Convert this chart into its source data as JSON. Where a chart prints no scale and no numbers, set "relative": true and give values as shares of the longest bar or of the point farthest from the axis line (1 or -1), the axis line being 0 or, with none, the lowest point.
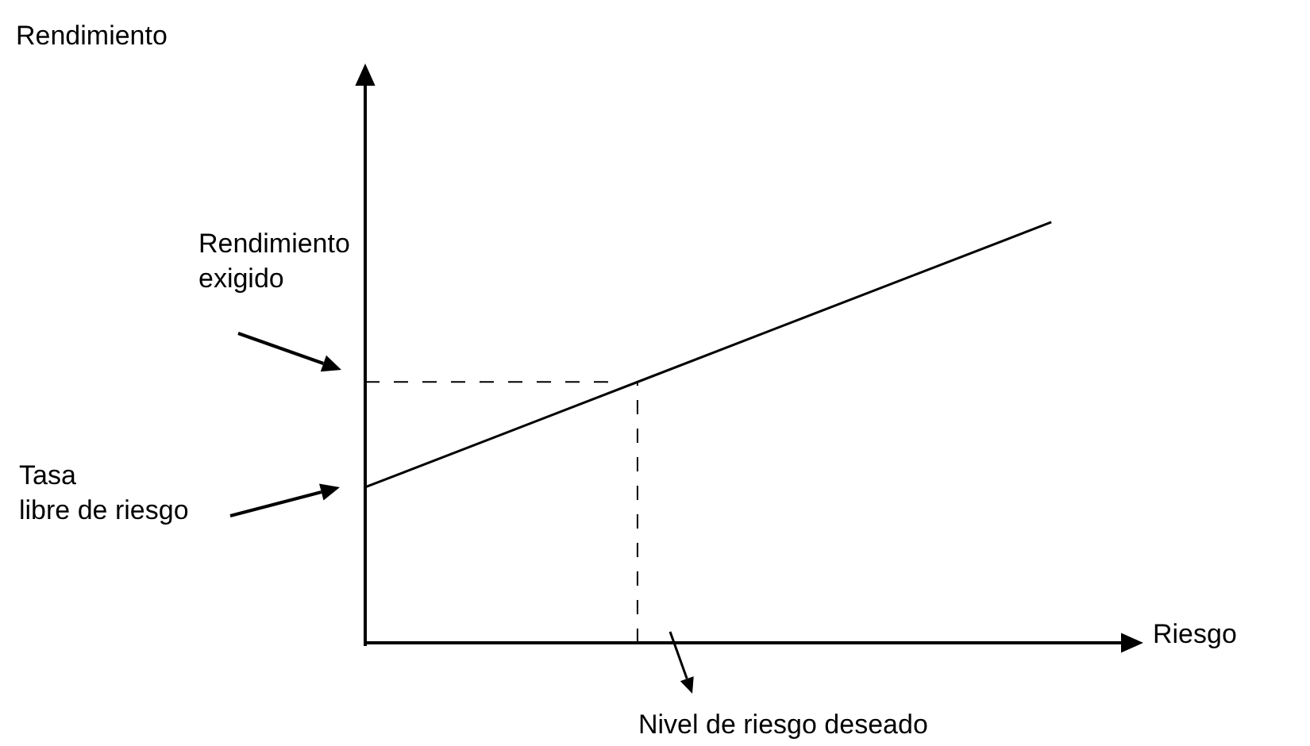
{
  "chart_data": {
    "type": "line",
    "relative": true,
    "xlabel": "Riesgo",
    "categories": [
      null,
      null,
      null,
      null,
      null,
      null
    ],
    "series": [
      {
        "color": "#000000",
        "values": [
          0.37,
          0.496,
          0.622,
          0.748,
          0.874,
          1
        ]
      }
    ],
    "ref_lines": [
      {
        "axis": "y",
        "value": 0.62,
        "line_style": "dashed",
        "color": "#000000"
      }
    ],
    "annotations": [
      "Rendimiento",
      "Rendimiento\nexigido",
      "Tasa\nlibre de riesgo",
      "Nivel de riesgo deseado"
    ],
    "grid": false,
    "marker": "none",
    "line_style": "solid"
  }
}
